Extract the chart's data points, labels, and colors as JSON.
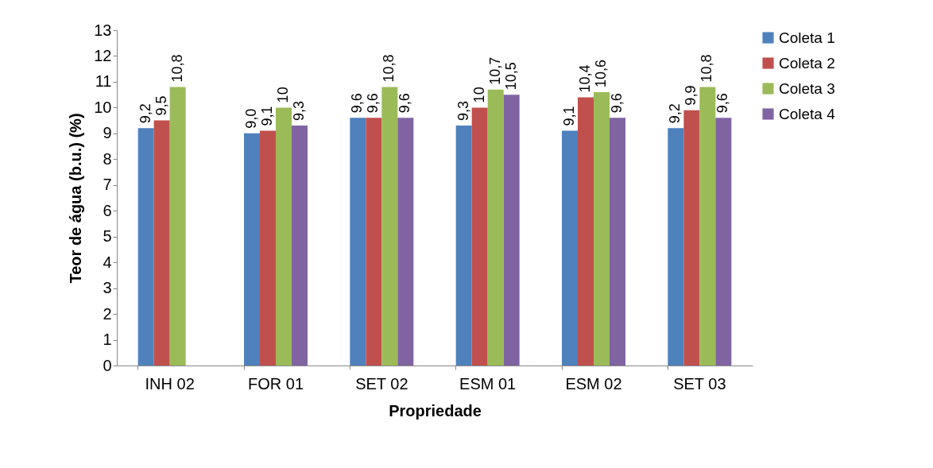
{
  "chart_data": {
    "type": "bar",
    "xlabel": "Propriedade",
    "ylabel": "Teor de água (b.u.) (%)",
    "categories": [
      "INH 02",
      "FOR 01",
      "SET 02",
      "ESM 01",
      "ESM 02",
      "SET 03"
    ],
    "series": [
      {
        "name": "Coleta 1",
        "color": "#4f81bd",
        "values": [
          9.2,
          9.0,
          9.6,
          9.3,
          9.1,
          9.2
        ],
        "value_labels": [
          "9,2",
          "9,0",
          "9,6",
          "9,3",
          "9,1",
          "9,2"
        ]
      },
      {
        "name": "Coleta 2",
        "color": "#c0504d",
        "values": [
          9.5,
          9.1,
          9.6,
          10,
          10.4,
          9.9
        ],
        "value_labels": [
          "9,5",
          "9,1",
          "9,6",
          "10",
          "10,4",
          "9,9"
        ]
      },
      {
        "name": "Coleta 3",
        "color": "#9bbb59",
        "values": [
          10.8,
          10,
          10.8,
          10.7,
          10.6,
          10.8
        ],
        "value_labels": [
          "10,8",
          "10",
          "10,8",
          "10,7",
          "10,6",
          "10,8"
        ]
      },
      {
        "name": "Coleta 4",
        "color": "#8064a2",
        "values": [
          null,
          9.3,
          9.6,
          10.5,
          9.6,
          9.6
        ],
        "value_labels": [
          null,
          "9,3",
          "9,6",
          "10,5",
          "9,6",
          "9,6"
        ]
      }
    ],
    "ylim": [
      0,
      13
    ],
    "yticks": [
      0,
      1,
      2,
      3,
      4,
      5,
      6,
      7,
      8,
      9,
      10,
      11,
      12,
      13
    ],
    "legend": "right"
  }
}
